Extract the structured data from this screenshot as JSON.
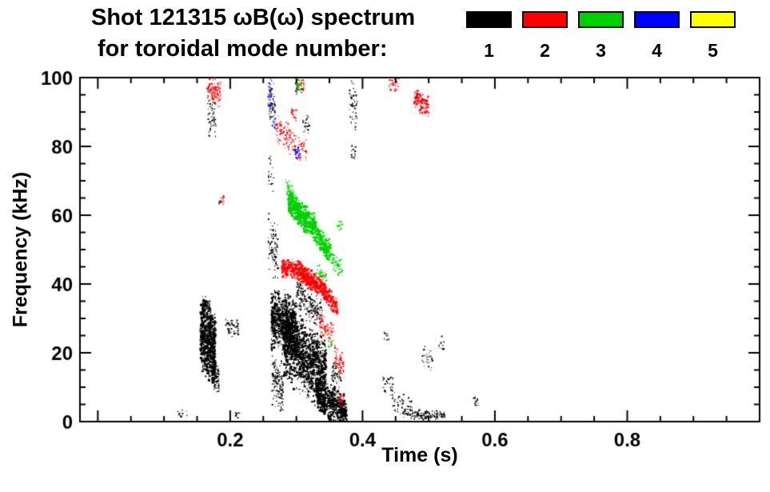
{
  "header": {
    "title_line1": "Shot 121315 ωB(ω) spectrum",
    "title_line2": "for toroidal mode number:"
  },
  "chart_data": {
    "type": "scatter",
    "title": "Shot 121315 ωB(ω) spectrum for toroidal mode number: 1 2 3 4 5",
    "xlabel": "Time (s)",
    "ylabel": "Frequency (kHz)",
    "xlim": [
      0,
      1.0
    ],
    "ylim": [
      0,
      100
    ],
    "xticks": [
      "0.2",
      "0.4",
      "0.6",
      "0.8"
    ],
    "yticks": [
      "0",
      "20",
      "40",
      "60",
      "80",
      "100"
    ],
    "x_major_step": 0.2,
    "y_major_step": 20,
    "x_minor_step": 0.05,
    "y_minor_step": 5,
    "grid": false,
    "legend_position": "top-right",
    "cluster_fields": [
      "t_start_s",
      "t_end_s",
      "freq_center_start_kHz",
      "freq_center_end_kHz",
      "freq_spread_kHz",
      "n_points",
      "point_size_px"
    ],
    "series": [
      {
        "name": "1",
        "color": "#000000",
        "clusters": [
          [
            0.12,
            0.135,
            2,
            2,
            1.5,
            12,
            2
          ],
          [
            0.155,
            0.178,
            25,
            21,
            12,
            650,
            3
          ],
          [
            0.158,
            0.17,
            34,
            33,
            3,
            90,
            2
          ],
          [
            0.172,
            0.183,
            15,
            12,
            5,
            130,
            2
          ],
          [
            0.166,
            0.179,
            88,
            88,
            7,
            55,
            2
          ],
          [
            0.183,
            0.187,
            64,
            64,
            2,
            8,
            2
          ],
          [
            0.193,
            0.213,
            28,
            27,
            3,
            55,
            2
          ],
          [
            0.207,
            0.214,
            2,
            2,
            1.5,
            10,
            2
          ],
          [
            0.258,
            0.268,
            92,
            92,
            8,
            60,
            2
          ],
          [
            0.258,
            0.266,
            72,
            72,
            6,
            20,
            2
          ],
          [
            0.257,
            0.273,
            52,
            48,
            10,
            90,
            2
          ],
          [
            0.263,
            0.28,
            12,
            10,
            8,
            150,
            2
          ],
          [
            0.262,
            0.3,
            30,
            27,
            10,
            650,
            3
          ],
          [
            0.28,
            0.345,
            24,
            13,
            12,
            1100,
            3
          ],
          [
            0.3,
            0.34,
            38,
            30,
            5,
            200,
            2
          ],
          [
            0.33,
            0.376,
            8,
            3,
            6,
            500,
            3
          ],
          [
            0.352,
            0.368,
            14,
            13,
            4,
            60,
            2
          ],
          [
            0.298,
            0.308,
            97,
            97,
            3,
            15,
            2
          ],
          [
            0.31,
            0.322,
            87,
            86,
            3,
            20,
            2
          ],
          [
            0.38,
            0.392,
            92,
            92,
            8,
            55,
            2
          ],
          [
            0.383,
            0.39,
            78,
            78,
            3,
            12,
            2
          ],
          [
            0.43,
            0.446,
            12,
            10,
            5,
            30,
            2
          ],
          [
            0.432,
            0.44,
            25,
            25,
            2,
            8,
            2
          ],
          [
            0.445,
            0.475,
            6,
            4,
            4,
            60,
            2
          ],
          [
            0.468,
            0.525,
            2,
            2,
            1.5,
            130,
            2
          ],
          [
            0.49,
            0.506,
            19,
            18,
            4,
            28,
            2
          ],
          [
            0.514,
            0.524,
            22,
            22,
            3,
            12,
            2
          ],
          [
            0.568,
            0.576,
            6,
            6,
            1.5,
            12,
            3
          ]
        ]
      },
      {
        "name": "2",
        "color": "#ff0000",
        "clusters": [
          [
            0.165,
            0.186,
            97,
            95,
            4,
            110,
            2
          ],
          [
            0.186,
            0.191,
            65,
            65,
            2,
            10,
            2
          ],
          [
            0.268,
            0.292,
            86,
            82,
            5,
            80,
            2
          ],
          [
            0.292,
            0.316,
            81,
            78,
            4,
            60,
            2
          ],
          [
            0.292,
            0.3,
            90,
            89,
            2,
            15,
            2
          ],
          [
            0.3,
            0.312,
            98,
            98,
            2.5,
            25,
            2
          ],
          [
            0.278,
            0.3,
            45,
            44,
            3,
            150,
            3
          ],
          [
            0.3,
            0.345,
            44,
            38,
            3.5,
            420,
            3
          ],
          [
            0.345,
            0.362,
            37,
            33,
            3,
            120,
            3
          ],
          [
            0.335,
            0.356,
            28,
            25,
            4,
            80,
            2
          ],
          [
            0.358,
            0.372,
            19,
            16,
            4,
            60,
            2
          ],
          [
            0.364,
            0.372,
            8,
            6,
            3,
            20,
            2
          ],
          [
            0.44,
            0.456,
            98,
            98,
            2.5,
            30,
            2
          ],
          [
            0.478,
            0.5,
            94,
            91,
            3.5,
            90,
            3
          ]
        ]
      },
      {
        "name": "3",
        "color": "#00d000",
        "clusters": [
          [
            0.284,
            0.296,
            69,
            66,
            3,
            60,
            2
          ],
          [
            0.288,
            0.306,
            64,
            61,
            4,
            200,
            3
          ],
          [
            0.302,
            0.33,
            61,
            56,
            4.5,
            330,
            3
          ],
          [
            0.33,
            0.352,
            54,
            49,
            4,
            170,
            3
          ],
          [
            0.3,
            0.308,
            98,
            98,
            2.5,
            25,
            2
          ],
          [
            0.352,
            0.37,
            47,
            44,
            3,
            60,
            2
          ],
          [
            0.362,
            0.371,
            57,
            57,
            2,
            15,
            2
          ],
          [
            0.33,
            0.346,
            44,
            42,
            2.5,
            40,
            2
          ],
          [
            0.346,
            0.354,
            24,
            23,
            2,
            12,
            2
          ]
        ]
      },
      {
        "name": "4",
        "color": "#0000ff",
        "clusters": [
          [
            0.257,
            0.263,
            95,
            95,
            5,
            30,
            2
          ],
          [
            0.263,
            0.269,
            87,
            87,
            2,
            8,
            2
          ],
          [
            0.298,
            0.306,
            78,
            78,
            2.5,
            25,
            2
          ]
        ]
      },
      {
        "name": "5",
        "color": "#ffff00",
        "clusters": []
      }
    ]
  }
}
